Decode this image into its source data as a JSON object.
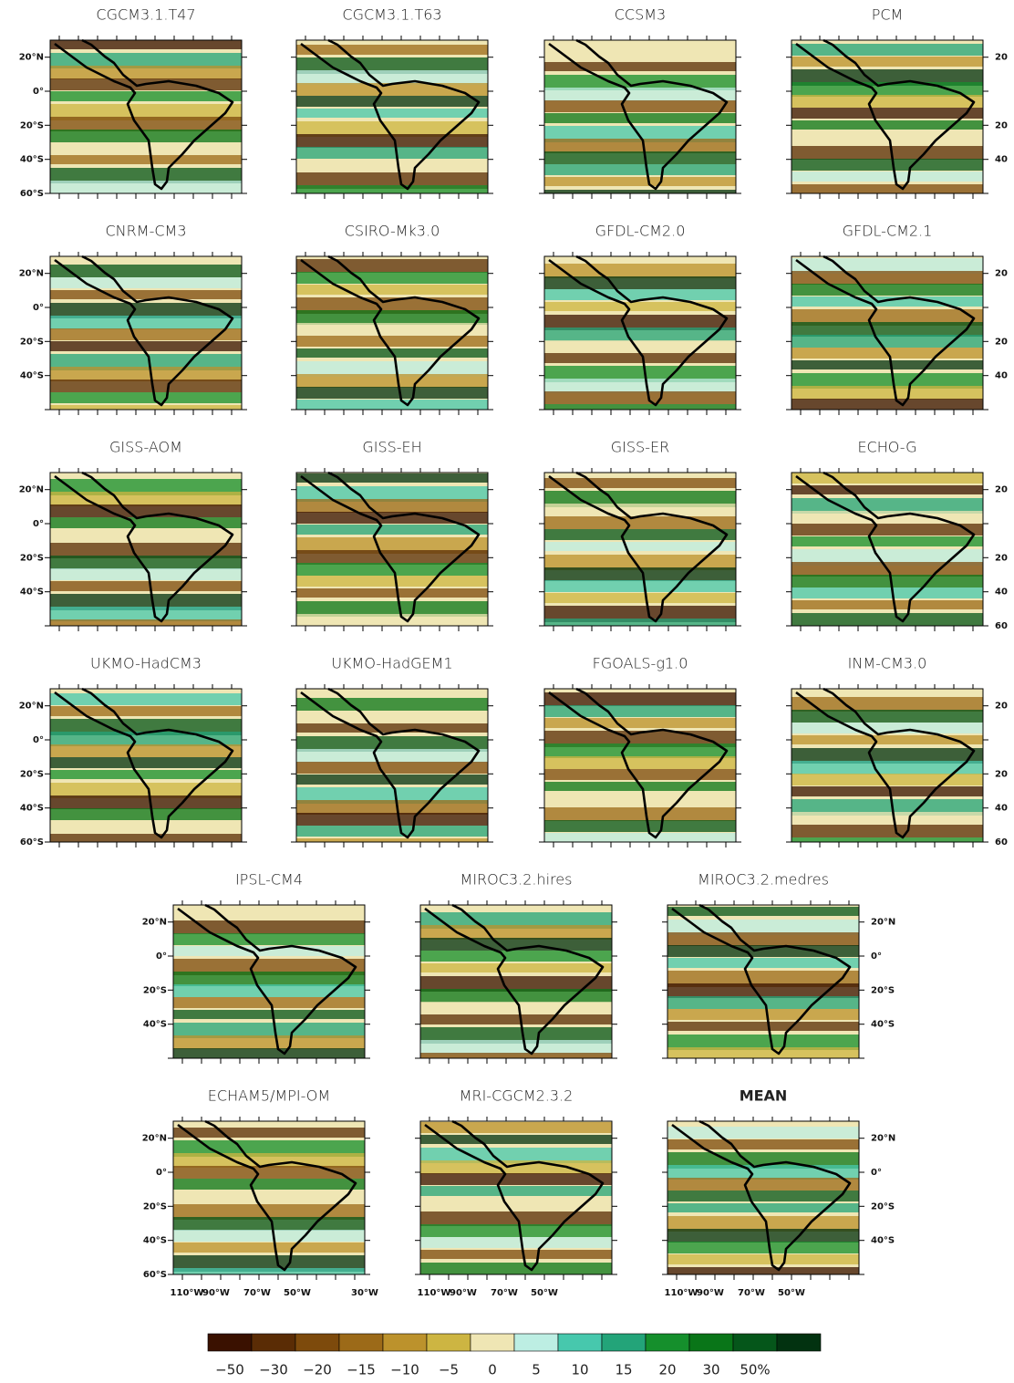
{
  "panels": [
    {
      "title": "CGCM3.1.T47",
      "left_labels": [
        "20°N",
        "0°",
        "20°S",
        "40°S",
        "60°S"
      ]
    },
    {
      "title": "CGCM3.1.T63"
    },
    {
      "title": "CCSM3"
    },
    {
      "title": "PCM",
      "right_labels": [
        "20",
        null,
        "20",
        "40",
        null
      ]
    },
    {
      "title": "CNRM-CM3",
      "left_labels": [
        "20°N",
        "0°",
        "20°S",
        "40°S",
        null
      ]
    },
    {
      "title": "CSIRO-Mk3.0"
    },
    {
      "title": "GFDL-CM2.0"
    },
    {
      "title": "GFDL-CM2.1",
      "right_labels": [
        "20",
        null,
        "20",
        "40",
        null
      ]
    },
    {
      "title": "GISS-AOM",
      "left_labels": [
        "20°N",
        "0°",
        "20°S",
        "40°S",
        null
      ]
    },
    {
      "title": "GISS-EH"
    },
    {
      "title": "GISS-ER"
    },
    {
      "title": "ECHO-G",
      "right_labels": [
        "20",
        null,
        "20",
        "40",
        "60"
      ]
    },
    {
      "title": "UKMO-HadCM3",
      "left_labels": [
        "20°N",
        "0°",
        "20°S",
        "40°S",
        "60°S"
      ]
    },
    {
      "title": "UKMO-HadGEM1"
    },
    {
      "title": "FGOALS-g1.0"
    },
    {
      "title": "INM-CM3.0",
      "right_labels": [
        "20",
        null,
        "20",
        "40",
        "60"
      ]
    },
    {
      "title": "IPSL-CM4",
      "left_labels": [
        "20°N",
        "0°",
        "20°S",
        "40°S",
        null
      ]
    },
    {
      "title": "MIROC3.2.hires"
    },
    {
      "title": "MIROC3.2.medres",
      "right_labels": [
        "20°N",
        "0°",
        "20°S",
        "40°S",
        null
      ]
    },
    {
      "title": "ECHAM5/MPI-OM",
      "left_labels": [
        "20°N",
        "0°",
        "20°S",
        "40°S",
        "60°S"
      ],
      "bottom_labels": [
        "110°W",
        "90°W",
        "70°W",
        "50°W",
        "30°W"
      ]
    },
    {
      "title": "MRI-CGCM2.3.2",
      "bottom_labels": [
        "110°W",
        "90°W",
        "70°W",
        "50°W",
        null
      ]
    },
    {
      "title": "MEAN",
      "right_labels": [
        "20°N",
        "0°",
        "20°S",
        "40°S",
        null
      ],
      "bottom_labels": [
        "110°W",
        "90°W",
        "70°W",
        "50°W",
        null
      ]
    }
  ],
  "colorbar": {
    "colors": [
      "#3a1100",
      "#5a2c05",
      "#7d4a0c",
      "#9c6a18",
      "#bc922c",
      "#cdb542",
      "#efe6b4",
      "#bdeee3",
      "#47c8ad",
      "#23a479",
      "#158f2c",
      "#097518",
      "#05561a",
      "#023210"
    ],
    "labels": [
      "−50",
      "−30",
      "−20",
      "−15",
      "−10",
      "−5",
      "0",
      "5",
      "10",
      "15",
      "20",
      "30",
      "50%"
    ]
  }
}
